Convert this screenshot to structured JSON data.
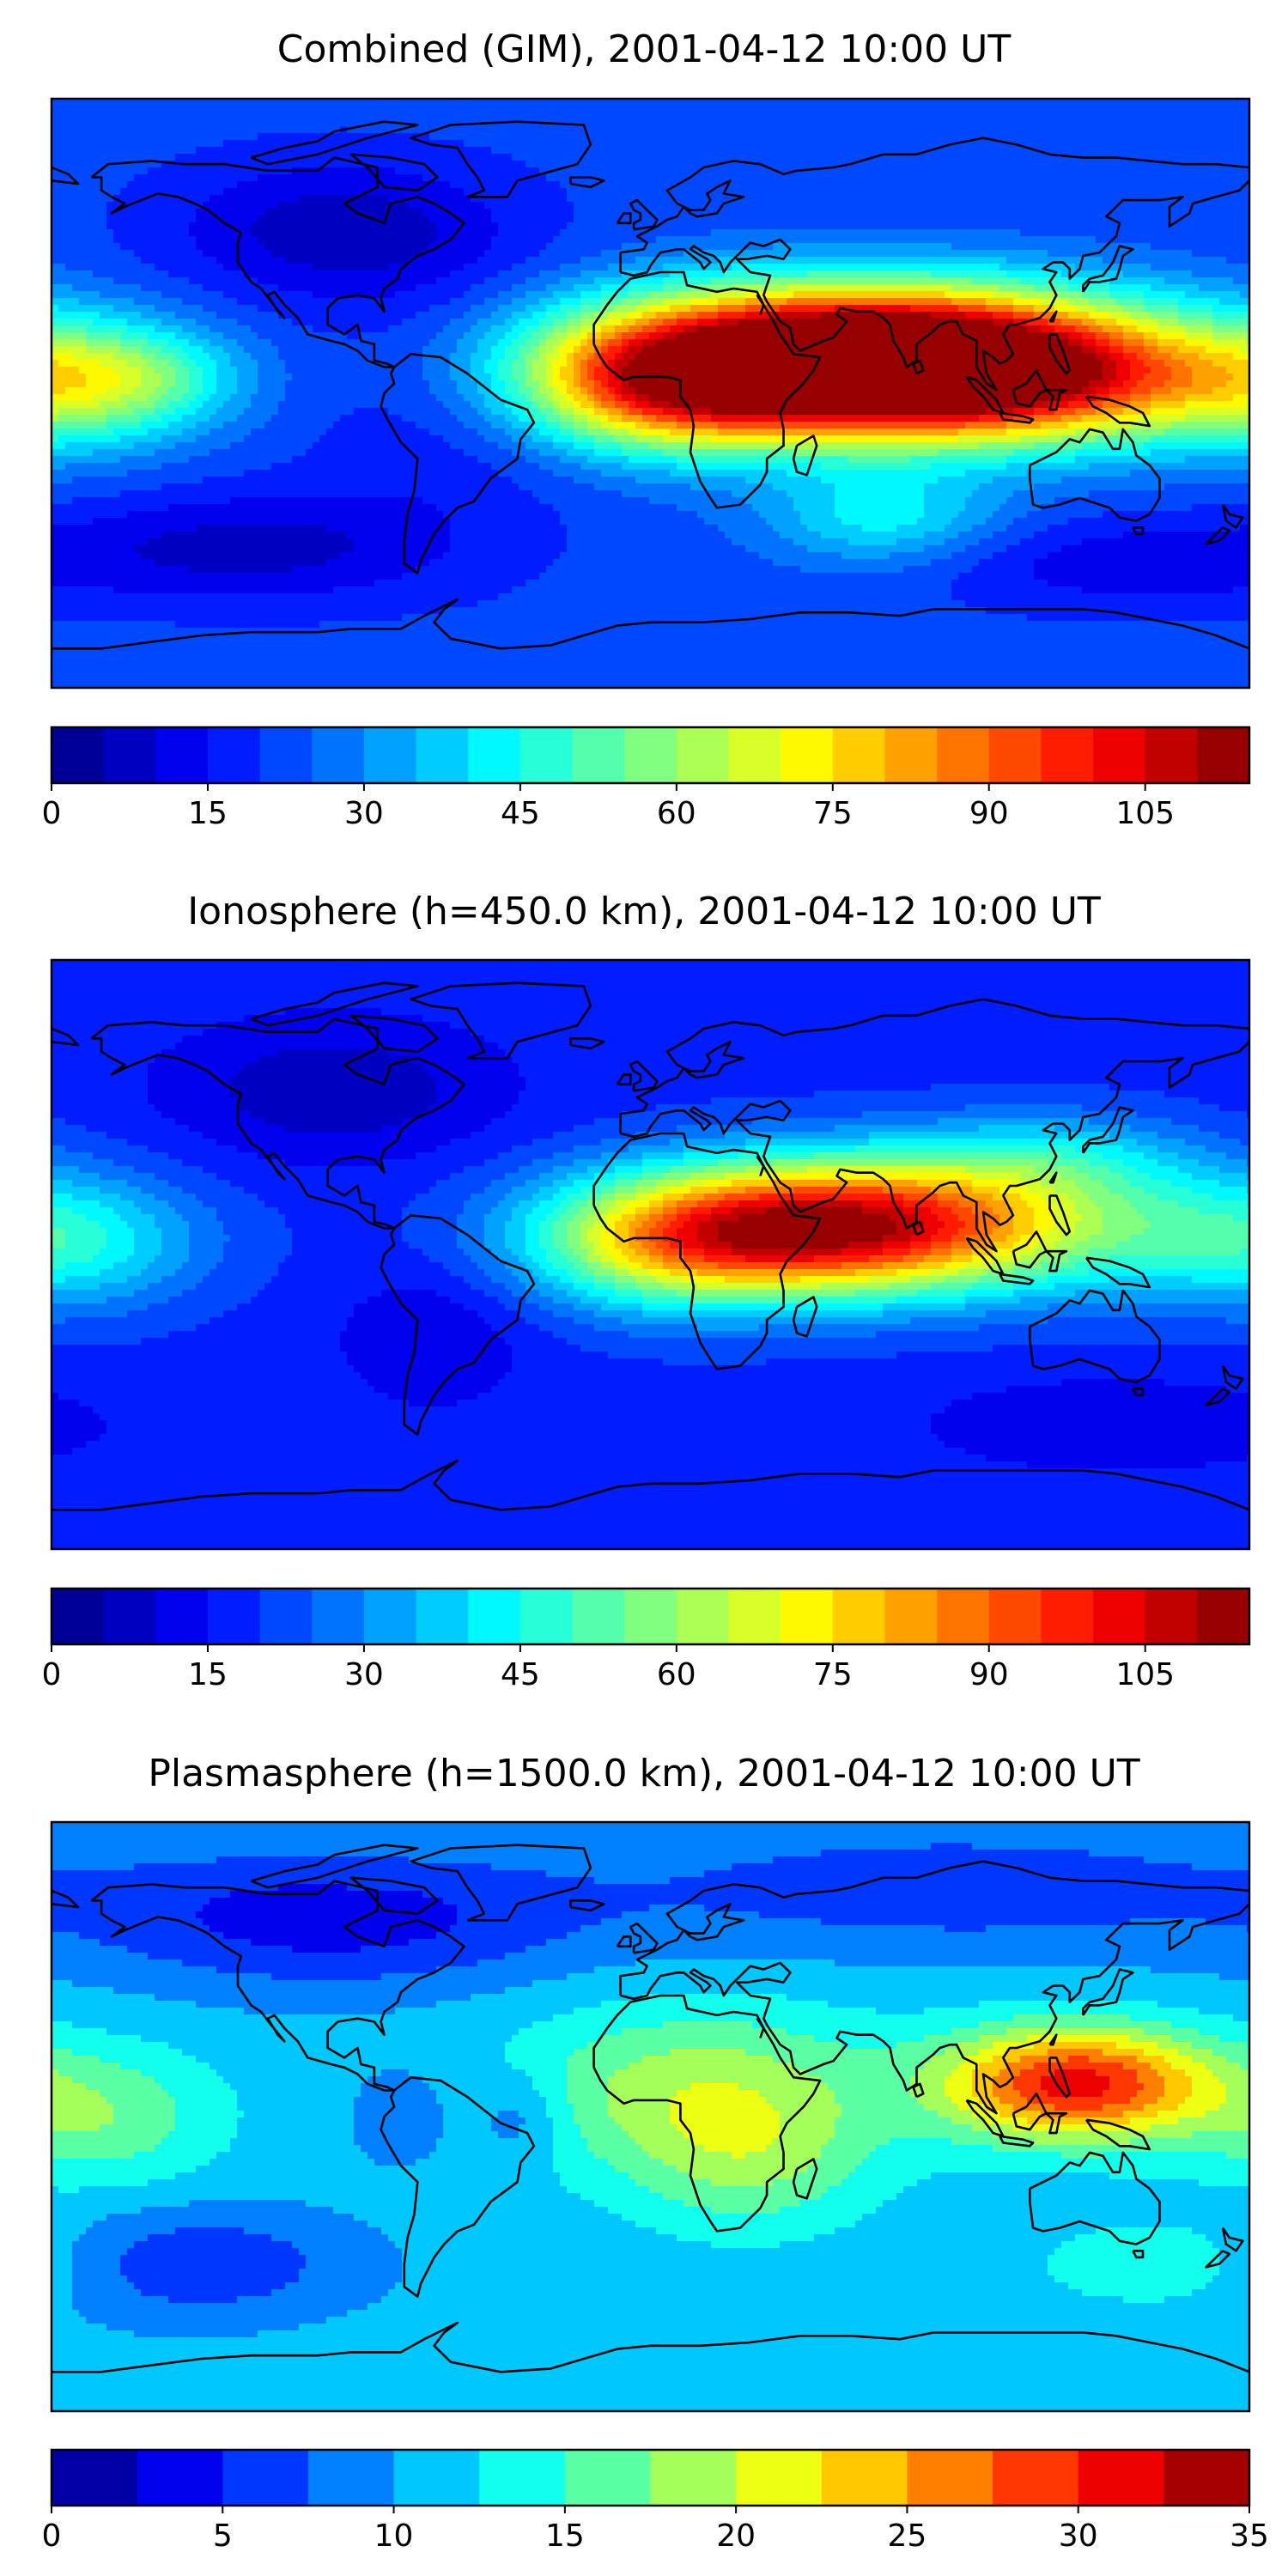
{
  "panels": [
    {
      "title": "Combined (GIM), 2001-04-12 10:00 UT",
      "colorbar": {
        "min": 0,
        "max": 115,
        "step": 5,
        "ticks": [
          "0",
          "15",
          "30",
          "45",
          "60",
          "75",
          "90",
          "105"
        ],
        "tick_values": [
          0,
          15,
          30,
          45,
          60,
          75,
          90,
          105
        ]
      },
      "field": {
        "base": 22,
        "blobs": [
          {
            "lon": 50,
            "lat": 8,
            "slon": 55,
            "slat": 15,
            "amp": 85
          },
          {
            "lon": 105,
            "lat": 5,
            "slon": 45,
            "slat": 14,
            "amp": 65
          },
          {
            "lon": 5,
            "lat": 2,
            "slon": 30,
            "slat": 14,
            "amp": 40
          },
          {
            "lon": 70,
            "lat": 22,
            "slon": 55,
            "slat": 12,
            "amp": 25
          },
          {
            "lon": -175,
            "lat": 3,
            "slon": 28,
            "slat": 14,
            "amp": 30
          },
          {
            "lon": -150,
            "lat": 5,
            "slon": 20,
            "slat": 10,
            "amp": 15
          },
          {
            "lon": 70,
            "lat": -38,
            "slon": 25,
            "slat": 10,
            "amp": 20
          },
          {
            "lon": -95,
            "lat": 50,
            "slon": 35,
            "slat": 15,
            "amp": -15
          },
          {
            "lon": -120,
            "lat": -47,
            "slon": 40,
            "slat": 12,
            "amp": -14
          },
          {
            "lon": -60,
            "lat": 0,
            "slon": 30,
            "slat": 30,
            "amp": -8
          },
          {
            "lon": 140,
            "lat": -52,
            "slon": 40,
            "slat": 10,
            "amp": -10
          }
        ]
      }
    },
    {
      "title": "Ionosphere  (h=450.0 km), 2001-04-12 10:00 UT",
      "colorbar": {
        "min": 0,
        "max": 115,
        "step": 5,
        "ticks": [
          "0",
          "15",
          "30",
          "45",
          "60",
          "75",
          "90",
          "105"
        ],
        "tick_values": [
          0,
          15,
          30,
          45,
          60,
          75,
          90,
          105
        ]
      },
      "field": {
        "base": 18,
        "blobs": [
          {
            "lon": 50,
            "lat": 8,
            "slon": 45,
            "slat": 14,
            "amp": 65
          },
          {
            "lon": 90,
            "lat": 10,
            "slon": 60,
            "slat": 15,
            "amp": 35
          },
          {
            "lon": 5,
            "lat": 2,
            "slon": 30,
            "slat": 14,
            "amp": 28
          },
          {
            "lon": -175,
            "lat": 3,
            "slon": 28,
            "slat": 14,
            "amp": 22
          },
          {
            "lon": 120,
            "lat": 30,
            "slon": 30,
            "slat": 10,
            "amp": 15
          },
          {
            "lon": -95,
            "lat": 50,
            "slon": 35,
            "slat": 15,
            "amp": -12
          },
          {
            "lon": -65,
            "lat": -25,
            "slon": 20,
            "slat": 15,
            "amp": -8
          },
          {
            "lon": 140,
            "lat": -52,
            "slon": 40,
            "slat": 10,
            "amp": -8
          }
        ]
      }
    },
    {
      "title": "Plasmasphere (h=1500.0 km), 2001-04-12 10:00 UT",
      "colorbar": {
        "min": 0,
        "max": 35,
        "step": 2.5,
        "ticks": [
          "0",
          "5",
          "10",
          "15",
          "20",
          "25",
          "30",
          "35"
        ],
        "tick_values": [
          0,
          5,
          10,
          15,
          20,
          25,
          30,
          35
        ]
      },
      "field": {
        "base": 11,
        "blobs": [
          {
            "lon": 128,
            "lat": 10,
            "slon": 28,
            "slat": 12,
            "amp": 20
          },
          {
            "lon": 15,
            "lat": 8,
            "slon": 40,
            "slat": 18,
            "amp": 8
          },
          {
            "lon": 30,
            "lat": -15,
            "slon": 25,
            "slat": 15,
            "amp": 5
          },
          {
            "lon": -165,
            "lat": 0,
            "slon": 25,
            "slat": 15,
            "amp": 6
          },
          {
            "lon": -95,
            "lat": 60,
            "slon": 50,
            "slat": 15,
            "amp": -7
          },
          {
            "lon": -140,
            "lat": -45,
            "slon": 35,
            "slat": 12,
            "amp": -6
          },
          {
            "lon": -75,
            "lat": 0,
            "slon": 10,
            "slat": 10,
            "amp": -4
          },
          {
            "lon": -40,
            "lat": 0,
            "slon": 10,
            "slat": 10,
            "amp": -4
          },
          {
            "lon": 160,
            "lat": -45,
            "slon": 30,
            "slat": 10,
            "amp": 4
          },
          {
            "lon": 90,
            "lat": 70,
            "slon": 80,
            "slat": 15,
            "amp": -5
          }
        ]
      }
    }
  ],
  "colormap": {
    "name": "jet",
    "line_color": "#000000"
  }
}
